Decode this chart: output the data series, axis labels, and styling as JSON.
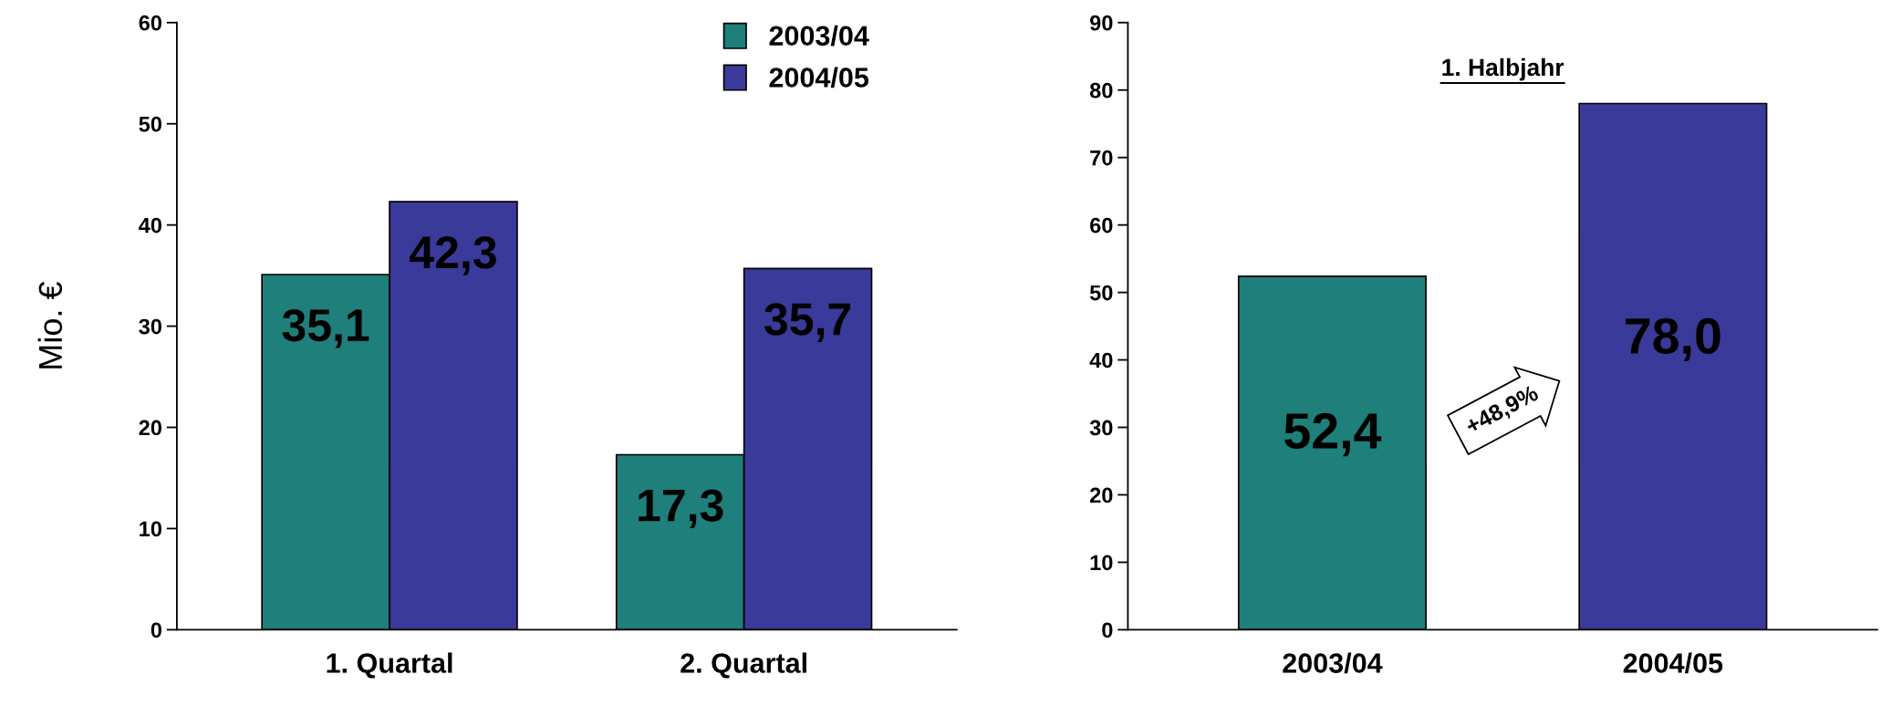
{
  "chart_data": [
    {
      "type": "bar",
      "ylabel": "Mio. €",
      "categories": [
        "1. Quartal",
        "2. Quartal"
      ],
      "ylim": [
        0,
        60
      ],
      "yticks": [
        0,
        10,
        20,
        30,
        40,
        50,
        60
      ],
      "legend": "top right",
      "grid": false,
      "series": [
        {
          "name": "2003/04",
          "color": "#1f7f7a",
          "values": [
            35.1,
            17.3
          ],
          "value_labels": [
            "35,1",
            "17,3"
          ]
        },
        {
          "name": "2004/05",
          "color": "#3a3a9a",
          "values": [
            42.3,
            35.7
          ],
          "value_labels": [
            "42,3",
            "35,7"
          ]
        }
      ]
    },
    {
      "type": "bar",
      "title": "1. Halbjahr",
      "categories": [
        "2003/04",
        "2004/05"
      ],
      "ylim": [
        0,
        90
      ],
      "yticks": [
        0,
        10,
        20,
        30,
        40,
        50,
        60,
        70,
        80,
        90
      ],
      "grid": false,
      "values": [
        52.4,
        78.0
      ],
      "colors": [
        "#1f7f7a",
        "#3a3a9a"
      ],
      "value_labels": [
        "52,4",
        "78,0"
      ],
      "annotations": [
        "+48,9%"
      ]
    }
  ]
}
